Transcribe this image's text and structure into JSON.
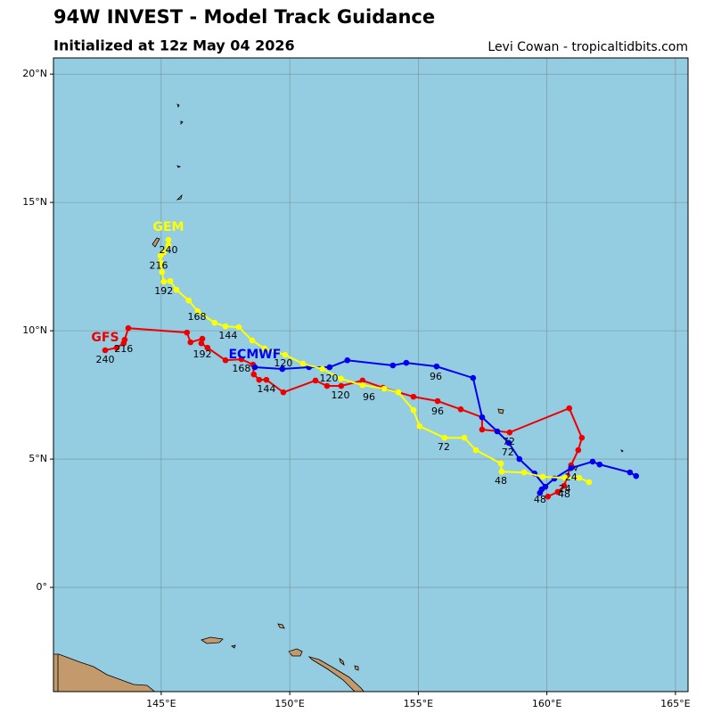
{
  "chart_data": {
    "type": "track-map",
    "title": "94W INVEST - Model Track Guidance",
    "subtitle": "Initialized at 12z May 04 2026",
    "credit": "Levi Cowan - tropicaltidbits.com",
    "xlim": [
      140.81,
      165.49
    ],
    "ylim": [
      -4.06,
      20.63
    ],
    "xticks": [
      {
        "value": 145,
        "label": "145°E"
      },
      {
        "value": 150,
        "label": "150°E"
      },
      {
        "value": 155,
        "label": "155°E"
      },
      {
        "value": 160,
        "label": "160°E"
      },
      {
        "value": 165,
        "label": "165°E"
      }
    ],
    "yticks": [
      {
        "value": 0,
        "label": "0°"
      },
      {
        "value": 5,
        "label": "5°N"
      },
      {
        "value": 10,
        "label": "10°N"
      },
      {
        "value": 15,
        "label": "15°N"
      },
      {
        "value": 20,
        "label": "20°N"
      }
    ],
    "grid": true,
    "ocean_color": "#94cde2",
    "land_color": "#c29a6b",
    "series": [
      {
        "name": "GFS",
        "color": "#ee0000",
        "x": [
          160.04,
          160.42,
          160.67,
          160.94,
          161.22,
          161.36,
          160.87,
          158.55,
          157.48,
          157.48,
          156.65,
          155.75,
          154.81,
          153.63,
          152.83,
          152.0,
          151.45,
          151.0,
          149.75,
          149.09,
          148.81,
          148.6,
          148.57,
          148.12,
          147.5,
          146.8,
          146.56,
          146.6,
          146.14,
          146.0,
          143.72,
          143.58,
          143.54,
          143.27,
          142.82
        ],
        "y": [
          3.54,
          3.72,
          3.96,
          4.76,
          5.35,
          5.83,
          6.98,
          6.04,
          6.15,
          6.63,
          6.94,
          7.26,
          7.43,
          7.78,
          8.06,
          7.85,
          7.85,
          8.06,
          7.6,
          8.09,
          8.09,
          8.3,
          8.68,
          8.89,
          8.85,
          9.34,
          9.51,
          9.69,
          9.55,
          9.93,
          10.1,
          9.65,
          9.51,
          9.34,
          9.24
        ]
      },
      {
        "name": "ECMWF",
        "color": "#0000ee",
        "x": [
          163.47,
          163.23,
          162.05,
          161.78,
          160.94,
          160.29,
          159.8,
          159.73,
          159.94,
          159.52,
          158.93,
          158.52,
          158.07,
          157.48,
          157.13,
          155.71,
          154.53,
          154.01,
          152.24,
          151.55,
          150.75,
          149.71,
          148.64
        ],
        "y": [
          4.34,
          4.48,
          4.79,
          4.9,
          4.65,
          4.24,
          3.82,
          3.68,
          3.92,
          4.44,
          5.0,
          5.63,
          6.08,
          6.63,
          8.16,
          8.61,
          8.75,
          8.65,
          8.85,
          8.58,
          8.58,
          8.51,
          8.58
        ]
      },
      {
        "name": "GEM",
        "color": "#ffff00",
        "x": [
          161.64,
          161.26,
          160.7,
          159.84,
          159.11,
          158.24,
          158.21,
          157.24,
          156.79,
          156.02,
          155.05,
          154.81,
          154.22,
          153.67,
          152.83,
          152.0,
          151.27,
          150.51,
          149.82,
          149.02,
          148.54,
          148.02,
          147.5,
          147.08,
          146.42,
          146.07,
          145.59,
          145.35,
          145.1,
          145.03,
          144.97,
          144.97,
          145.1,
          145.28,
          145.28
        ],
        "y": [
          4.1,
          4.27,
          4.27,
          4.31,
          4.48,
          4.51,
          4.83,
          5.35,
          5.83,
          5.83,
          6.28,
          6.91,
          7.6,
          7.74,
          7.88,
          8.13,
          8.51,
          8.72,
          9.06,
          9.31,
          9.62,
          10.14,
          10.17,
          10.31,
          10.76,
          11.18,
          11.6,
          11.94,
          11.91,
          12.29,
          12.67,
          12.92,
          13.06,
          13.33,
          13.54
        ]
      }
    ],
    "annotations": [
      {
        "text": "24",
        "lon": 160.94,
        "lat": 4.27
      },
      {
        "text": "24",
        "lon": 160.7,
        "lat": 3.82
      },
      {
        "text": "48",
        "lon": 160.67,
        "lat": 3.61
      },
      {
        "text": "48",
        "lon": 159.73,
        "lat": 3.4
      },
      {
        "text": "48",
        "lon": 158.21,
        "lat": 4.13
      },
      {
        "text": "72",
        "lon": 158.52,
        "lat": 5.66
      },
      {
        "text": "72",
        "lon": 158.48,
        "lat": 5.24
      },
      {
        "text": "72",
        "lon": 155.99,
        "lat": 5.45
      },
      {
        "text": "96",
        "lon": 155.75,
        "lat": 6.84
      },
      {
        "text": "96",
        "lon": 155.68,
        "lat": 8.19
      },
      {
        "text": "96",
        "lon": 153.08,
        "lat": 7.4
      },
      {
        "text": "120",
        "lon": 151.97,
        "lat": 7.47
      },
      {
        "text": "120",
        "lon": 151.52,
        "lat": 8.13
      },
      {
        "text": "120",
        "lon": 149.75,
        "lat": 8.72
      },
      {
        "text": "144",
        "lon": 149.09,
        "lat": 7.71
      },
      {
        "text": "144",
        "lon": 147.6,
        "lat": 9.79
      },
      {
        "text": "168",
        "lon": 148.12,
        "lat": 8.51
      },
      {
        "text": "168",
        "lon": 146.39,
        "lat": 10.52
      },
      {
        "text": "192",
        "lon": 146.6,
        "lat": 9.06
      },
      {
        "text": "192",
        "lon": 145.1,
        "lat": 11.53
      },
      {
        "text": "216",
        "lon": 143.54,
        "lat": 9.27
      },
      {
        "text": "216",
        "lon": 144.9,
        "lat": 12.53
      },
      {
        "text": "240",
        "lon": 142.82,
        "lat": 8.85
      },
      {
        "text": "240",
        "lon": 145.28,
        "lat": 13.13
      }
    ]
  }
}
